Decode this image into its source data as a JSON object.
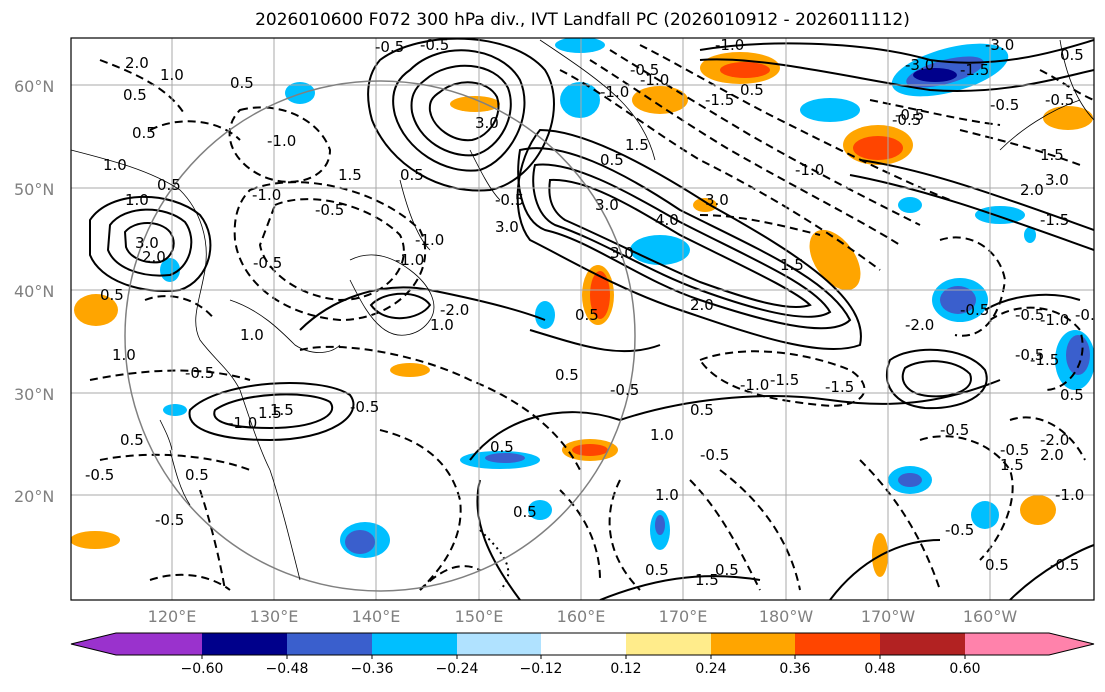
{
  "title": "2026010600 F072 300 hPa div., IVT Landfall PC (2026010912 - 2026011112)",
  "lat_labels": [
    "60°N",
    "50°N",
    "40°N",
    "30°N",
    "20°N"
  ],
  "lon_labels": [
    "120°E",
    "130°E",
    "140°E",
    "150°E",
    "160°E",
    "170°E",
    "180°W",
    "170°W",
    "160°W"
  ],
  "colorbar": {
    "ticks": [
      "−0.60",
      "−0.48",
      "−0.36",
      "−0.24",
      "−0.12",
      "0.12",
      "0.24",
      "0.36",
      "0.48",
      "0.60"
    ],
    "colors": [
      "#9a32cd",
      "#00008b",
      "#3a5fcd",
      "#00bfff",
      "#b0e2ff",
      "#ffffff",
      "#ffec8b",
      "#ffa500",
      "#ff4500",
      "#b22222",
      "#ff82ab"
    ]
  },
  "contour_labels": [
    "2.0",
    "1.0",
    "0.5",
    "-0.5",
    "0.5",
    "0.5",
    "1.0",
    "-1.0",
    "0.5",
    "1.0",
    "-1.0",
    "3.0",
    "-0.5",
    "-0.5",
    "3.0",
    "-0.5",
    "0.5",
    "1.0",
    "1.5",
    "0.5",
    "-1.0",
    "2.0",
    "3.0",
    "0.5",
    "-0.5",
    "1.5",
    "-1.5",
    "3.0",
    "3.0",
    "4.0",
    "3.0",
    "-1.0",
    "-3.0",
    "-1.5",
    "0.5",
    "-0.5",
    "1.5",
    "-2.0",
    "-0.5",
    "1.0",
    "-1.0",
    "2.0",
    "1.0",
    "0.5",
    "-1.5",
    "-0.5",
    "0.5",
    "0.5",
    "0.5",
    "-0.5",
    "-0.5",
    "-1.0",
    "-1.5",
    "-0.5",
    "0.5",
    "-1.0",
    "-0.5",
    "0.5",
    "1.5",
    "1.0",
    "1.5",
    "-0.5",
    "-0.5",
    "2.0",
    "0.5",
    "0.5",
    "-1.0",
    "-1.5",
    "-0.5",
    "0.5",
    "0.5",
    "1.0",
    "-0.5",
    "-1.0",
    "-1.5",
    "1.5",
    "-0.5",
    "-0.5",
    "-0.5",
    "0.5",
    "-1.0",
    "-0.5",
    "-1.0",
    "1.5",
    "-0.5",
    "-2.0",
    "3.0",
    "1.5",
    "2.0",
    "-2.0",
    "-0.5",
    "-1.0",
    "-3.0",
    "-0.5",
    "0.5",
    "-0.5"
  ]
}
